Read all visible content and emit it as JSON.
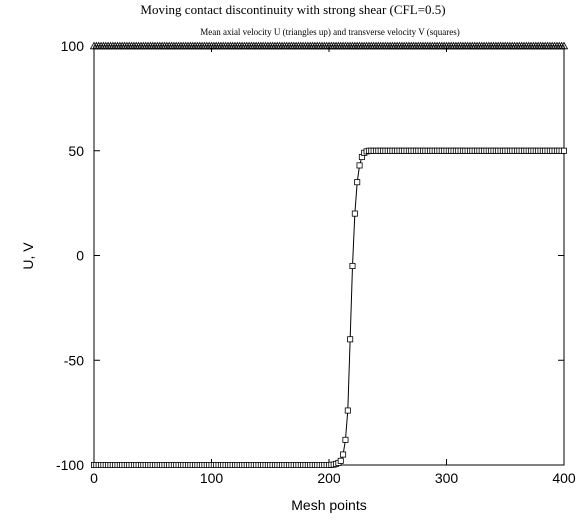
{
  "chart_data": {
    "type": "line",
    "title": "Moving contact discontinuity with strong shear (CFL=0.5)",
    "subtitle": "Mean axial velocity U (triangles up) and transverse velocity V (squares)",
    "xlabel": "Mesh points",
    "ylabel": "U, V",
    "xlim": [
      0,
      400
    ],
    "ylim": [
      -100,
      100
    ],
    "xticks": [
      0,
      100,
      200,
      300,
      400
    ],
    "yticks": [
      -100,
      -50,
      0,
      50,
      100
    ],
    "grid": false,
    "series": [
      {
        "marker": "triangle-up",
        "line": false,
        "x_start": 0,
        "x_end": 400,
        "x_step": 2,
        "values": [
          [
            0,
            100
          ],
          [
            400,
            100
          ]
        ]
      },
      {
        "marker": "square",
        "line": true,
        "x_start": 0,
        "x_end": 400,
        "x_step": 2,
        "values": [
          [
            0,
            -100
          ],
          [
            200,
            -100
          ],
          [
            202,
            -99.9
          ],
          [
            204,
            -99.8
          ],
          [
            206,
            -99.5
          ],
          [
            208,
            -99
          ],
          [
            210,
            -98
          ],
          [
            212,
            -95
          ],
          [
            214,
            -88
          ],
          [
            216,
            -74
          ],
          [
            218,
            -40
          ],
          [
            220,
            -5
          ],
          [
            222,
            20
          ],
          [
            224,
            35
          ],
          [
            226,
            43
          ],
          [
            228,
            47
          ],
          [
            230,
            49
          ],
          [
            232,
            49.7
          ],
          [
            234,
            50
          ],
          [
            400,
            50
          ]
        ]
      }
    ]
  }
}
